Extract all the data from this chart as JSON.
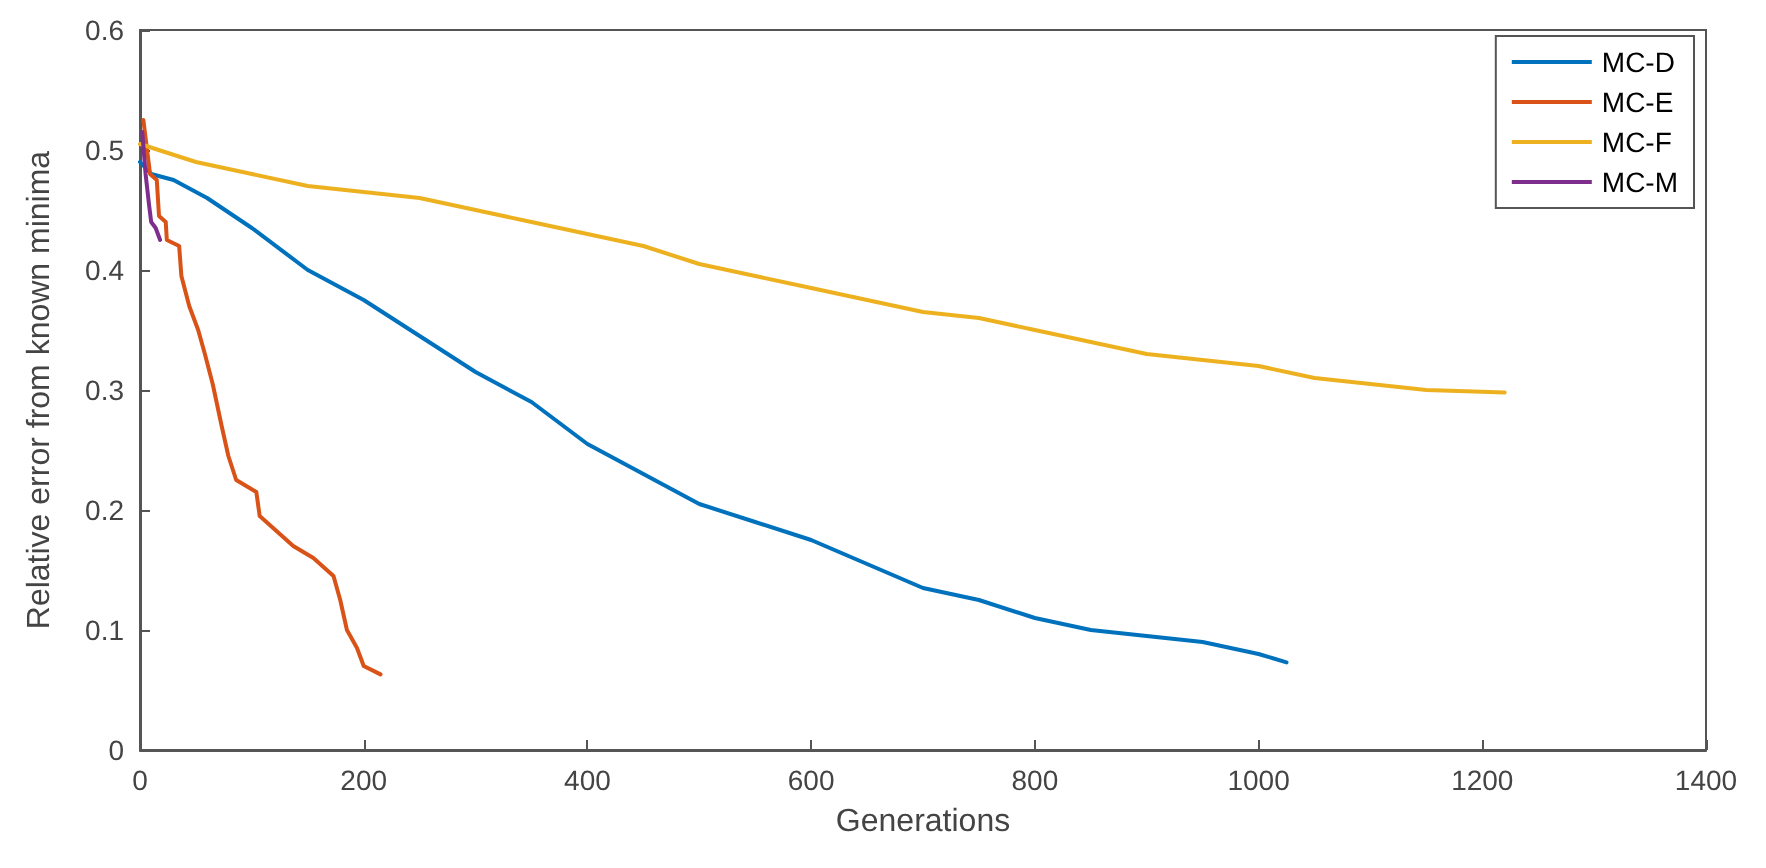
{
  "chart_data": {
    "type": "line",
    "xlabel": "Generations",
    "ylabel": "Relative error from known minima",
    "xlim": [
      0,
      1400
    ],
    "xticks": [
      0,
      200,
      400,
      600,
      800,
      1000,
      1200,
      1400
    ],
    "ylim": [
      0,
      0.6
    ],
    "yticks": [
      0,
      0.1,
      0.2,
      0.3,
      0.4,
      0.5,
      0.6
    ],
    "grid": false,
    "legend": "top right",
    "marker": "none",
    "line_style": "solid",
    "series": [
      {
        "name": "MC-D",
        "color": "#0072bd",
        "x": [
          0,
          10,
          30,
          60,
          100,
          150,
          200,
          250,
          300,
          350,
          400,
          450,
          500,
          550,
          600,
          650,
          700,
          750,
          800,
          850,
          900,
          950,
          1000,
          1025
        ],
        "values": [
          0.49,
          0.48,
          0.475,
          0.46,
          0.435,
          0.4,
          0.375,
          0.345,
          0.315,
          0.29,
          0.255,
          0.23,
          0.205,
          0.19,
          0.175,
          0.155,
          0.135,
          0.125,
          0.11,
          0.1,
          0.095,
          0.09,
          0.08,
          0.073
        ]
      },
      {
        "name": "MC-E",
        "color": "#d95319",
        "x": [
          3,
          9,
          15,
          17,
          23,
          24,
          35,
          37,
          44,
          52,
          58,
          65,
          73,
          79,
          86,
          104,
          107,
          119,
          137,
          155,
          173,
          179,
          185,
          194,
          200,
          215
        ],
        "values": [
          0.525,
          0.48,
          0.475,
          0.445,
          0.44,
          0.425,
          0.42,
          0.395,
          0.37,
          0.35,
          0.33,
          0.305,
          0.27,
          0.245,
          0.225,
          0.215,
          0.195,
          0.185,
          0.17,
          0.16,
          0.145,
          0.125,
          0.1,
          0.085,
          0.07,
          0.063
        ]
      },
      {
        "name": "MC-F",
        "color": "#edb120",
        "x": [
          0,
          50,
          100,
          150,
          200,
          250,
          300,
          350,
          400,
          450,
          500,
          550,
          600,
          650,
          700,
          750,
          800,
          850,
          900,
          950,
          1000,
          1050,
          1100,
          1150,
          1220
        ],
        "values": [
          0.505,
          0.49,
          0.48,
          0.47,
          0.465,
          0.46,
          0.45,
          0.44,
          0.43,
          0.42,
          0.405,
          0.395,
          0.385,
          0.375,
          0.365,
          0.36,
          0.35,
          0.34,
          0.33,
          0.325,
          0.32,
          0.31,
          0.305,
          0.3,
          0.298
        ]
      },
      {
        "name": "MC-M",
        "color": "#7e2f8e",
        "x": [
          2,
          5,
          8,
          10,
          14,
          18
        ],
        "values": [
          0.515,
          0.48,
          0.455,
          0.44,
          0.435,
          0.425
        ]
      }
    ]
  }
}
